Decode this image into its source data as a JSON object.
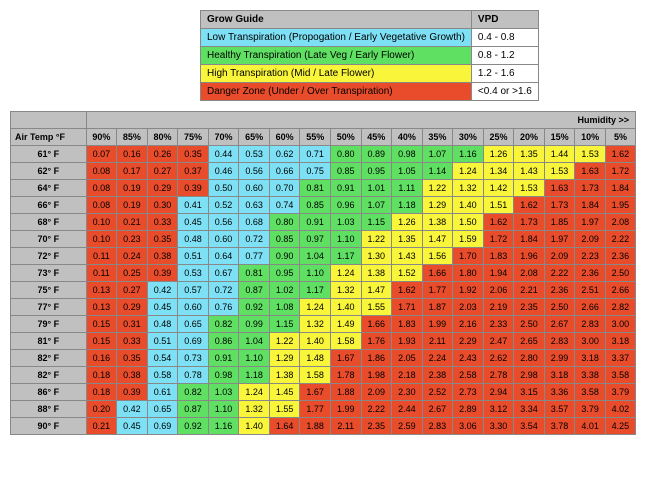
{
  "colors": {
    "header": "#c0c0c0",
    "low": "#7de0f5",
    "healthy": "#5fe063",
    "high": "#f8f53a",
    "danger": "#e84c2b"
  },
  "legend": {
    "title_left": "Grow Guide",
    "title_right": "VPD",
    "rows": [
      {
        "label": "Low Transpiration (Propogation / Early Vegetative Growth)",
        "range": "0.4 - 0.8",
        "color": "low"
      },
      {
        "label": "Healthy Transpiration (Late Veg / Early Flower)",
        "range": "0.8 - 1.2",
        "color": "healthy"
      },
      {
        "label": "High Transpiration (Mid / Late Flower)",
        "range": "1.2 - 1.6",
        "color": "high"
      },
      {
        "label": "Danger Zone (Under / Over Transpiration)",
        "range": "<0.4 or >1.6",
        "color": "danger"
      }
    ]
  },
  "humidity_label": "Humidity >>",
  "airtemp_label": "Air Temp °F",
  "cols": [
    "90%",
    "85%",
    "80%",
    "75%",
    "70%",
    "65%",
    "60%",
    "55%",
    "50%",
    "45%",
    "40%",
    "35%",
    "30%",
    "25%",
    "20%",
    "15%",
    "10%",
    "5%"
  ],
  "rows": [
    {
      "label": "61° F",
      "vals": [
        0.07,
        0.16,
        0.26,
        0.35,
        0.44,
        0.53,
        0.62,
        0.71,
        0.8,
        0.89,
        0.98,
        1.07,
        1.16,
        1.26,
        1.35,
        1.44,
        1.53,
        1.62
      ]
    },
    {
      "label": "62° F",
      "vals": [
        0.08,
        0.17,
        0.27,
        0.37,
        0.46,
        0.56,
        0.66,
        0.75,
        0.85,
        0.95,
        1.05,
        1.14,
        1.24,
        1.34,
        1.43,
        1.53,
        1.63,
        1.72
      ]
    },
    {
      "label": "64° F",
      "vals": [
        0.08,
        0.19,
        0.29,
        0.39,
        0.5,
        0.6,
        0.7,
        0.81,
        0.91,
        1.01,
        1.11,
        1.22,
        1.32,
        1.42,
        1.53,
        1.63,
        1.73,
        1.84
      ]
    },
    {
      "label": "66° F",
      "vals": [
        0.08,
        0.19,
        0.3,
        0.41,
        0.52,
        0.63,
        0.74,
        0.85,
        0.96,
        1.07,
        1.18,
        1.29,
        1.4,
        1.51,
        1.62,
        1.73,
        1.84,
        1.95
      ]
    },
    {
      "label": "68° F",
      "vals": [
        0.1,
        0.21,
        0.33,
        0.45,
        0.56,
        0.68,
        0.8,
        0.91,
        1.03,
        1.15,
        1.26,
        1.38,
        1.5,
        1.62,
        1.73,
        1.85,
        1.97,
        2.08
      ]
    },
    {
      "label": "70° F",
      "vals": [
        0.1,
        0.23,
        0.35,
        0.48,
        0.6,
        0.72,
        0.85,
        0.97,
        1.1,
        1.22,
        1.35,
        1.47,
        1.59,
        1.72,
        1.84,
        1.97,
        2.09,
        2.22
      ]
    },
    {
      "label": "72° F",
      "vals": [
        0.11,
        0.24,
        0.38,
        0.51,
        0.64,
        0.77,
        0.9,
        1.04,
        1.17,
        1.3,
        1.43,
        1.56,
        1.7,
        1.83,
        1.96,
        2.09,
        2.23,
        2.36
      ]
    },
    {
      "label": "73° F",
      "vals": [
        0.11,
        0.25,
        0.39,
        0.53,
        0.67,
        0.81,
        0.95,
        1.1,
        1.24,
        1.38,
        1.52,
        1.66,
        1.8,
        1.94,
        2.08,
        2.22,
        2.36,
        2.5
      ]
    },
    {
      "label": "75° F",
      "vals": [
        0.13,
        0.27,
        0.42,
        0.57,
        0.72,
        0.87,
        1.02,
        1.17,
        1.32,
        1.47,
        1.62,
        1.77,
        1.92,
        2.06,
        2.21,
        2.36,
        2.51,
        2.66
      ]
    },
    {
      "label": "77° F",
      "vals": [
        0.13,
        0.29,
        0.45,
        0.6,
        0.76,
        0.92,
        1.08,
        1.24,
        1.4,
        1.55,
        1.71,
        1.87,
        2.03,
        2.19,
        2.35,
        2.5,
        2.66,
        2.82
      ]
    },
    {
      "label": "79° F",
      "vals": [
        0.15,
        0.31,
        0.48,
        0.65,
        0.82,
        0.99,
        1.15,
        1.32,
        1.49,
        1.66,
        1.83,
        1.99,
        2.16,
        2.33,
        2.5,
        2.67,
        2.83,
        3.0
      ]
    },
    {
      "label": "81° F",
      "vals": [
        0.15,
        0.33,
        0.51,
        0.69,
        0.86,
        1.04,
        1.22,
        1.4,
        1.58,
        1.76,
        1.93,
        2.11,
        2.29,
        2.47,
        2.65,
        2.83,
        3.0,
        3.18
      ]
    },
    {
      "label": "82° F",
      "vals": [
        0.16,
        0.35,
        0.54,
        0.73,
        0.91,
        1.1,
        1.29,
        1.48,
        1.67,
        1.86,
        2.05,
        2.24,
        2.43,
        2.62,
        2.8,
        2.99,
        3.18,
        3.37
      ]
    },
    {
      "label": "82° F",
      "vals": [
        0.18,
        0.38,
        0.58,
        0.78,
        0.98,
        1.18,
        1.38,
        1.58,
        1.78,
        1.98,
        2.18,
        2.38,
        2.58,
        2.78,
        2.98,
        3.18,
        3.38,
        3.58
      ]
    },
    {
      "label": "86° F",
      "vals": [
        0.18,
        0.39,
        0.61,
        0.82,
        1.03,
        1.24,
        1.45,
        1.67,
        1.88,
        2.09,
        2.3,
        2.52,
        2.73,
        2.94,
        3.15,
        3.36,
        3.58,
        3.79
      ]
    },
    {
      "label": "88° F",
      "vals": [
        0.2,
        0.42,
        0.65,
        0.87,
        1.1,
        1.32,
        1.55,
        1.77,
        1.99,
        2.22,
        2.44,
        2.67,
        2.89,
        3.12,
        3.34,
        3.57,
        3.79,
        4.02
      ]
    },
    {
      "label": "90° F",
      "vals": [
        0.21,
        0.45,
        0.69,
        0.92,
        1.16,
        1.4,
        1.64,
        1.88,
        2.11,
        2.35,
        2.59,
        2.83,
        3.06,
        3.3,
        3.54,
        3.78,
        4.01,
        4.25
      ]
    }
  ]
}
